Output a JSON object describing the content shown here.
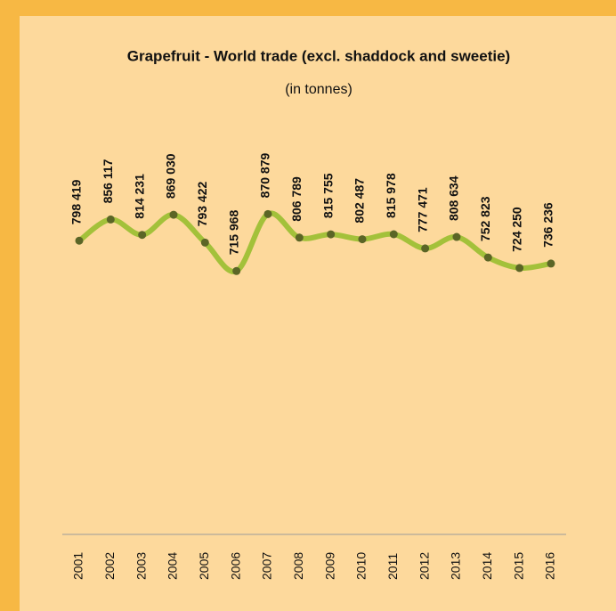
{
  "chart_data": {
    "type": "line",
    "title": "Grapefruit - World trade (excl. shaddock and sweetie)",
    "subtitle": "(in tonnes)",
    "categories": [
      "2001",
      "2002",
      "2003",
      "2004",
      "2005",
      "2006",
      "2007",
      "2008",
      "2009",
      "2010",
      "2011",
      "2012",
      "2013",
      "2014",
      "2015",
      "2016"
    ],
    "series": [
      {
        "color": "#a3c13a",
        "values": [
          798419,
          856117,
          814231,
          869030,
          793422,
          715968,
          870879,
          806789,
          815755,
          802487,
          815978,
          777471,
          808634,
          752823,
          724250,
          736236
        ],
        "value_labels": [
          "798 419",
          "856 117",
          "814 231",
          "869 030",
          "793 422",
          "715 968",
          "870 879",
          "806 789",
          "815 755",
          "802 487",
          "815 978",
          "777 471",
          "808 634",
          "752 823",
          "724 250",
          "736 236"
        ]
      }
    ],
    "marker_color": "#5b6526"
  }
}
